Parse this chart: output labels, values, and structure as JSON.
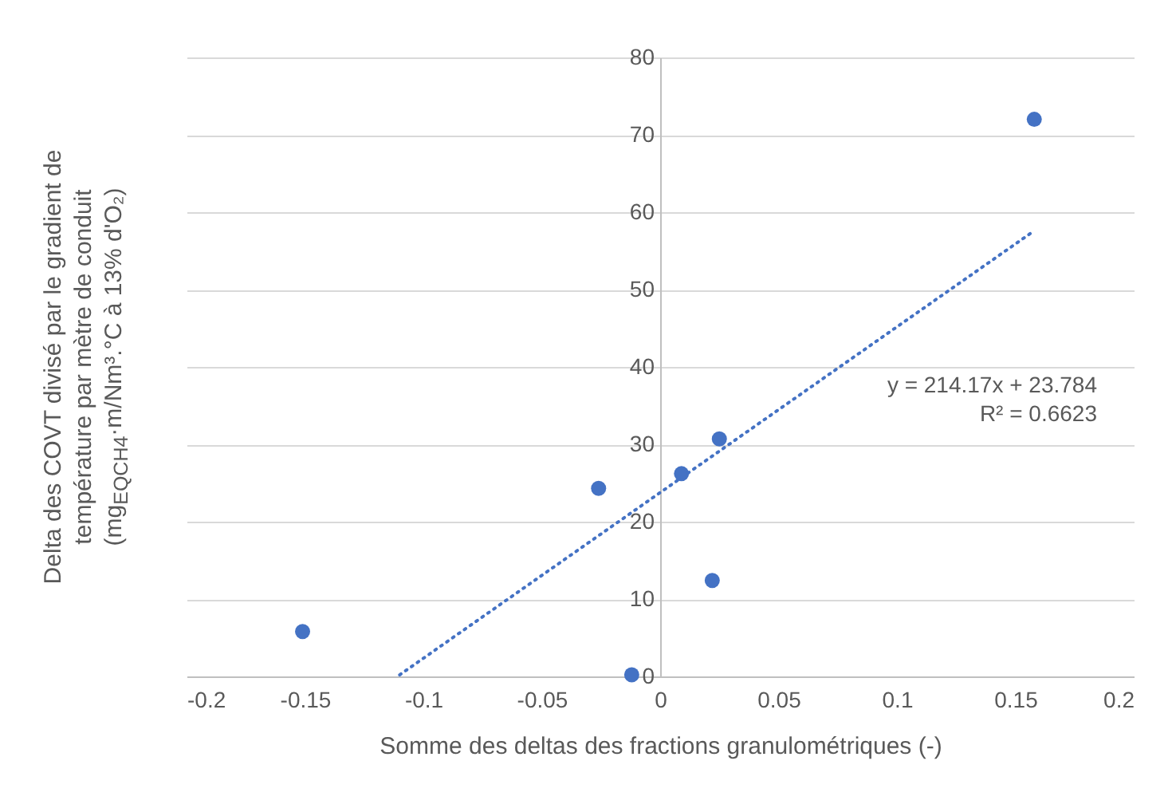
{
  "chart_data": {
    "type": "scatter",
    "xlabel": "Somme des deltas des fractions granulométriques (-)",
    "ylabel": "Delta des COVT divisé par le gradient de\ntempérature par mètre de conduit\n(mg$_{EQCH4}$·m/Nm³.°C à 13% d'O₂)",
    "series": [
      {
        "color": "#4472c4",
        "marker": "circle",
        "x": [
          -0.151,
          -0.026,
          -0.012,
          0.009,
          0.022,
          0.025,
          0.158
        ],
        "values": [
          5.8,
          24.3,
          0.2,
          26.2,
          12.4,
          30.7,
          72.0
        ]
      },
      {
        "type": "line",
        "color": "#4472c4",
        "line_style": "dotted",
        "x": [
          -0.11,
          0.158
        ],
        "values": [
          0.2,
          57.6
        ]
      }
    ],
    "annotations": [
      "y = 214.17x + 23.784",
      "R² = 0.6623"
    ],
    "xlim": [
      -0.2,
      0.2
    ],
    "xticks": [
      -0.2,
      -0.15,
      -0.1,
      -0.05,
      0,
      0.05,
      0.1,
      0.15,
      0.2
    ],
    "ylim": [
      0,
      80
    ],
    "yticks": [
      0,
      10,
      20,
      30,
      40,
      50,
      60,
      70,
      80
    ],
    "grid": "y"
  }
}
